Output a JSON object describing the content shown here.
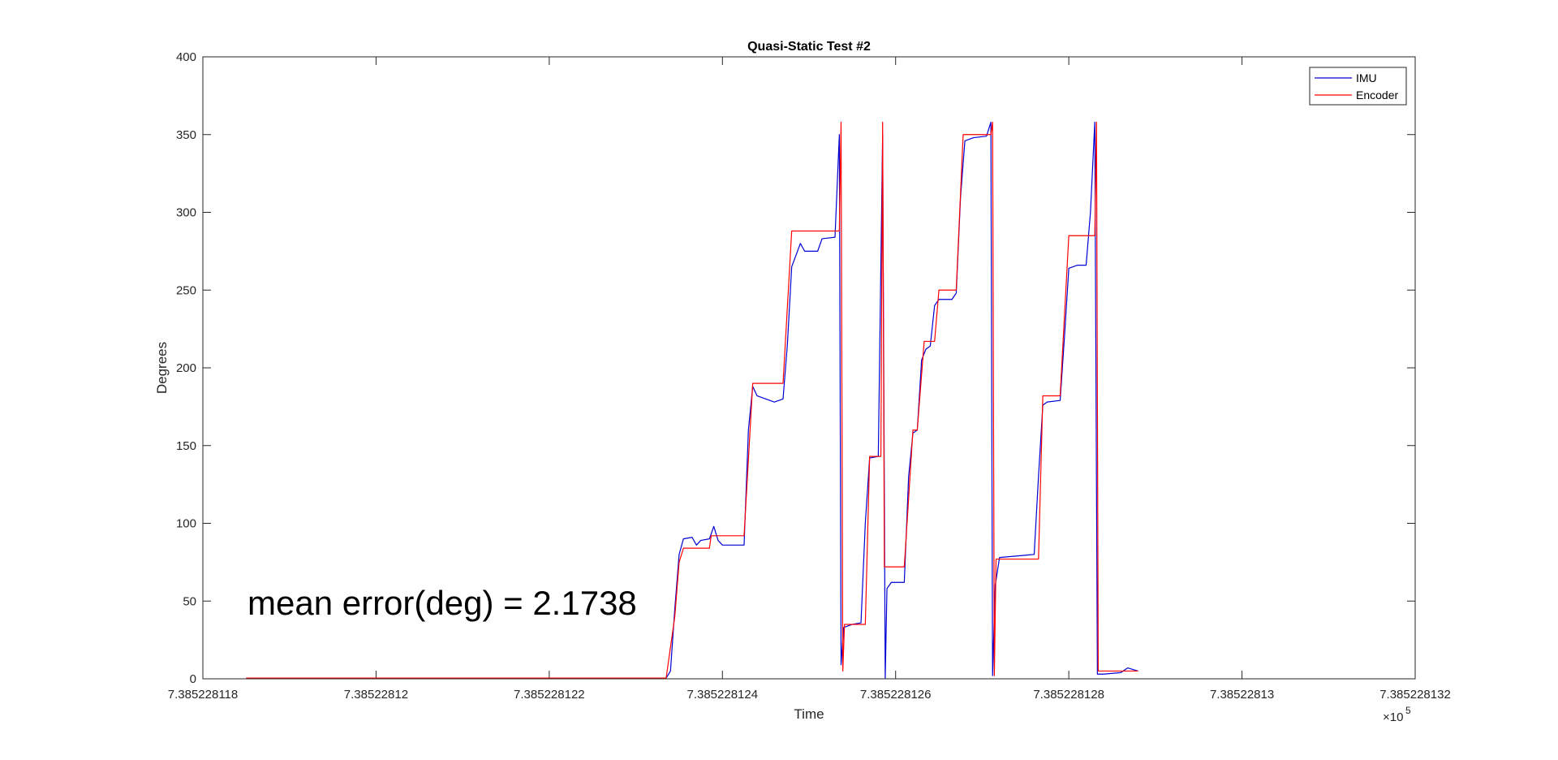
{
  "chart_data": {
    "type": "line",
    "title": "Quasi-Static Test #2",
    "xlabel": "Time",
    "ylabel": "Degrees",
    "annotation": "mean error(deg) = 2.1738",
    "x_exponent": {
      "base": "×10",
      "power": "5"
    },
    "xlim": [
      7.385228118,
      7.385228132
    ],
    "ylim": [
      0,
      400
    ],
    "x_ticks": [
      7.385228118,
      7.38522812,
      7.385228122,
      7.385228124,
      7.385228126,
      7.385228128,
      7.38522813,
      7.385228132
    ],
    "x_tick_labels": [
      "7.385228118",
      "7.38522812",
      "7.385228122",
      "7.385228124",
      "7.385228126",
      "7.385228128",
      "7.38522813",
      "7.385228132"
    ],
    "y_ticks": [
      0,
      50,
      100,
      150,
      200,
      250,
      300,
      350,
      400
    ],
    "y_tick_labels": [
      "0",
      "50",
      "100",
      "150",
      "200",
      "250",
      "300",
      "350",
      "400"
    ],
    "grid": false,
    "legend_position": "top-right",
    "series": [
      {
        "name": "IMU",
        "color": "#0000d4",
        "points": [
          [
            7.3852281185,
            0.5
          ],
          [
            7.38522812335,
            0.5
          ],
          [
            7.3852281234,
            5
          ],
          [
            7.38522812345,
            45
          ],
          [
            7.3852281235,
            80
          ],
          [
            7.38522812355,
            90
          ],
          [
            7.38522812365,
            91
          ],
          [
            7.3852281237,
            86
          ],
          [
            7.38522812375,
            89
          ],
          [
            7.38522812385,
            90
          ],
          [
            7.3852281239,
            98
          ],
          [
            7.38522812395,
            89
          ],
          [
            7.385228124,
            86
          ],
          [
            7.38522812425,
            86
          ],
          [
            7.3852281243,
            160
          ],
          [
            7.38522812435,
            188
          ],
          [
            7.3852281244,
            182
          ],
          [
            7.3852281245,
            180
          ],
          [
            7.3852281246,
            178
          ],
          [
            7.3852281247,
            180
          ],
          [
            7.38522812475,
            215
          ],
          [
            7.3852281248,
            265
          ],
          [
            7.3852281249,
            280
          ],
          [
            7.38522812495,
            275
          ],
          [
            7.3852281251,
            275
          ],
          [
            7.38522812515,
            283
          ],
          [
            7.3852281253,
            284
          ],
          [
            7.38522812535,
            350
          ],
          [
            7.38522812537,
            9
          ],
          [
            7.3852281254,
            33
          ],
          [
            7.3852281255,
            35
          ],
          [
            7.3852281256,
            36
          ],
          [
            7.38522812565,
            100
          ],
          [
            7.3852281257,
            142
          ],
          [
            7.3852281258,
            143
          ],
          [
            7.38522812585,
            350
          ],
          [
            7.38522812588,
            0
          ],
          [
            7.3852281259,
            58
          ],
          [
            7.38522812595,
            62
          ],
          [
            7.3852281261,
            62
          ],
          [
            7.38522812615,
            130
          ],
          [
            7.3852281262,
            158
          ],
          [
            7.38522812625,
            160
          ],
          [
            7.3852281263,
            205
          ],
          [
            7.38522812635,
            212
          ],
          [
            7.3852281264,
            214
          ],
          [
            7.38522812645,
            240
          ],
          [
            7.3852281265,
            244
          ],
          [
            7.38522812665,
            244
          ],
          [
            7.3852281267,
            248
          ],
          [
            7.38522812675,
            310
          ],
          [
            7.3852281268,
            346
          ],
          [
            7.3852281269,
            348
          ],
          [
            7.38522812705,
            349
          ],
          [
            7.3852281271,
            358
          ],
          [
            7.38522812712,
            2
          ],
          [
            7.38522812715,
            60
          ],
          [
            7.3852281272,
            78
          ],
          [
            7.3852281274,
            79
          ],
          [
            7.3852281276,
            80
          ],
          [
            7.38522812765,
            130
          ],
          [
            7.3852281277,
            176
          ],
          [
            7.38522812775,
            178
          ],
          [
            7.3852281279,
            179
          ],
          [
            7.38522812795,
            220
          ],
          [
            7.385228128,
            264
          ],
          [
            7.3852281281,
            266
          ],
          [
            7.3852281282,
            266
          ],
          [
            7.38522812825,
            300
          ],
          [
            7.3852281283,
            358
          ],
          [
            7.38522812833,
            3
          ],
          [
            7.3852281284,
            3
          ],
          [
            7.3852281286,
            4
          ],
          [
            7.38522812868,
            7
          ],
          [
            7.3852281288,
            5
          ]
        ]
      },
      {
        "name": "Encoder",
        "color": "#ff0000",
        "points": [
          [
            7.3852281185,
            0.5
          ],
          [
            7.38522812335,
            0.5
          ],
          [
            7.38522812345,
            40
          ],
          [
            7.3852281235,
            75
          ],
          [
            7.38522812355,
            84
          ],
          [
            7.38522812385,
            84
          ],
          [
            7.38522812387,
            92
          ],
          [
            7.38522812425,
            92
          ],
          [
            7.38522812435,
            190
          ],
          [
            7.3852281247,
            190
          ],
          [
            7.3852281248,
            288
          ],
          [
            7.38522812535,
            288
          ],
          [
            7.38522812537,
            358
          ],
          [
            7.38522812539,
            5
          ],
          [
            7.38522812541,
            35
          ],
          [
            7.38522812565,
            35
          ],
          [
            7.3852281257,
            143
          ],
          [
            7.38522812583,
            143
          ],
          [
            7.38522812585,
            358
          ],
          [
            7.38522812587,
            72
          ],
          [
            7.3852281261,
            72
          ],
          [
            7.3852281262,
            160
          ],
          [
            7.38522812625,
            160
          ],
          [
            7.38522812633,
            217
          ],
          [
            7.38522812645,
            217
          ],
          [
            7.3852281265,
            250
          ],
          [
            7.3852281267,
            250
          ],
          [
            7.38522812678,
            350
          ],
          [
            7.3852281271,
            350
          ],
          [
            7.38522812712,
            358
          ],
          [
            7.38522812714,
            2
          ],
          [
            7.38522812716,
            77
          ],
          [
            7.38522812765,
            77
          ],
          [
            7.3852281277,
            182
          ],
          [
            7.3852281279,
            182
          ],
          [
            7.385228128,
            285
          ],
          [
            7.3852281283,
            285
          ],
          [
            7.38522812832,
            358
          ],
          [
            7.38522812834,
            5
          ],
          [
            7.3852281288,
            5
          ]
        ]
      }
    ]
  }
}
